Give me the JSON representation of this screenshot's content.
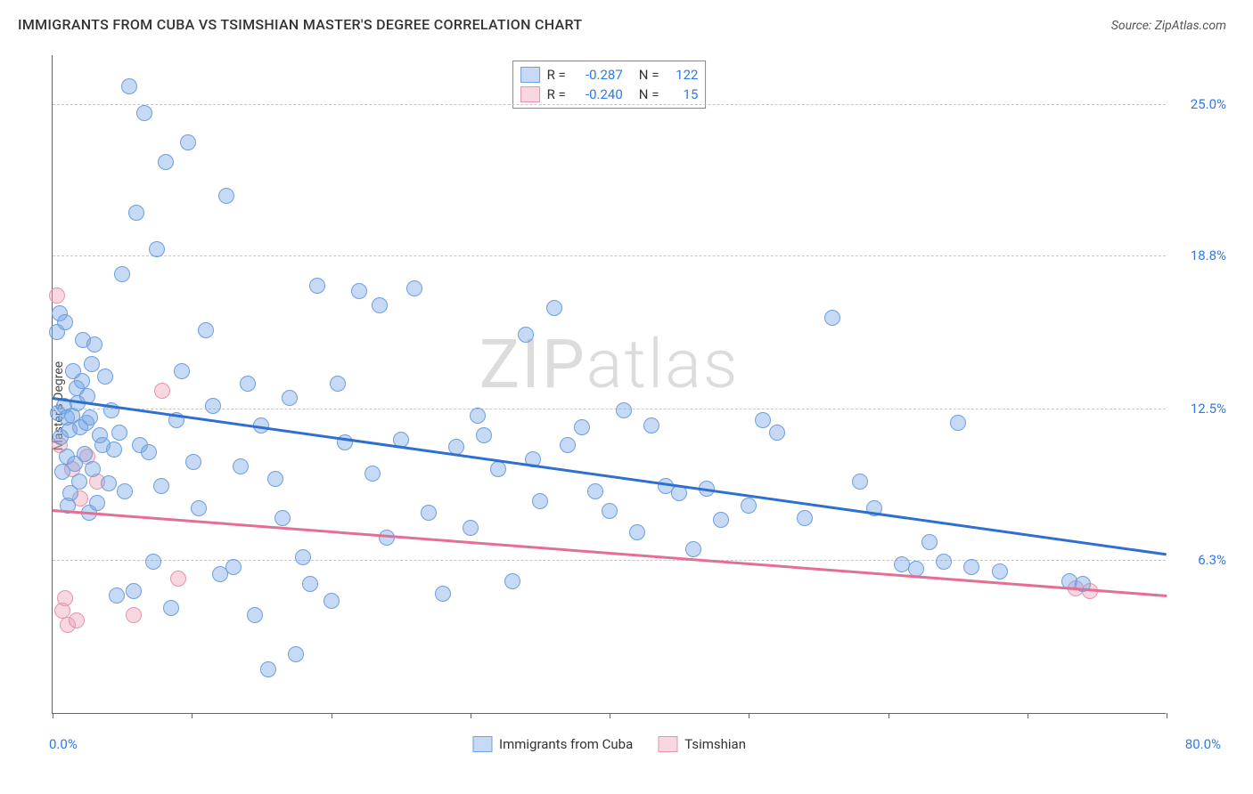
{
  "title": "IMMIGRANTS FROM CUBA VS TSIMSHIAN MASTER'S DEGREE CORRELATION CHART",
  "source_prefix": "Source: ",
  "source_name": "ZipAtlas.com",
  "ylabel": "Master's Degree",
  "watermark": {
    "bold": "ZIP",
    "light": "atlas"
  },
  "chart": {
    "type": "scatter",
    "xlim": [
      0,
      80
    ],
    "ylim": [
      0,
      27
    ],
    "x_axis_min_label": "0.0%",
    "x_axis_max_label": "80.0%",
    "x_ticks": [
      0,
      10,
      20,
      30,
      40,
      50,
      60,
      70,
      80
    ],
    "y_gridlines": [
      {
        "val": 6.3,
        "label": "6.3%"
      },
      {
        "val": 12.5,
        "label": "12.5%"
      },
      {
        "val": 18.8,
        "label": "18.8%"
      },
      {
        "val": 25.0,
        "label": "25.0%"
      }
    ],
    "axis_label_color": "#2f7ae5",
    "background_color": "#ffffff",
    "grid_color": "#c7c7c7",
    "marker_radius": 9,
    "series": [
      {
        "name": "Immigrants from Cuba",
        "fill": "rgba(120,165,230,0.42)",
        "stroke": "#6f9fdc",
        "line_color": "#2f6fd0",
        "R": "-0.287",
        "N": "122",
        "trend": {
          "x1": 0,
          "y1": 13.0,
          "x2": 80,
          "y2": 6.6
        },
        "points": [
          [
            0.3,
            15.6
          ],
          [
            0.4,
            12.3
          ],
          [
            0.5,
            16.4
          ],
          [
            0.6,
            11.3
          ],
          [
            0.7,
            9.9
          ],
          [
            0.8,
            12.6
          ],
          [
            0.9,
            16.0
          ],
          [
            1.0,
            12.1
          ],
          [
            1.0,
            10.5
          ],
          [
            1.1,
            8.5
          ],
          [
            1.2,
            11.6
          ],
          [
            1.3,
            9.0
          ],
          [
            1.4,
            12.2
          ],
          [
            1.5,
            14.0
          ],
          [
            1.6,
            10.2
          ],
          [
            1.7,
            13.3
          ],
          [
            1.8,
            12.7
          ],
          [
            1.9,
            9.5
          ],
          [
            2.0,
            11.7
          ],
          [
            2.1,
            13.6
          ],
          [
            2.2,
            15.3
          ],
          [
            2.3,
            10.6
          ],
          [
            2.4,
            11.9
          ],
          [
            2.5,
            13.0
          ],
          [
            2.6,
            8.2
          ],
          [
            2.7,
            12.1
          ],
          [
            2.8,
            14.3
          ],
          [
            2.9,
            10.0
          ],
          [
            3.0,
            15.1
          ],
          [
            3.2,
            8.6
          ],
          [
            3.4,
            11.4
          ],
          [
            3.6,
            11.0
          ],
          [
            3.8,
            13.8
          ],
          [
            4.0,
            9.4
          ],
          [
            4.2,
            12.4
          ],
          [
            4.4,
            10.8
          ],
          [
            4.6,
            4.8
          ],
          [
            4.8,
            11.5
          ],
          [
            5.0,
            18.0
          ],
          [
            5.2,
            9.1
          ],
          [
            5.5,
            25.7
          ],
          [
            5.8,
            5.0
          ],
          [
            6.0,
            20.5
          ],
          [
            6.3,
            11.0
          ],
          [
            6.6,
            24.6
          ],
          [
            6.9,
            10.7
          ],
          [
            7.2,
            6.2
          ],
          [
            7.5,
            19.0
          ],
          [
            7.8,
            9.3
          ],
          [
            8.1,
            22.6
          ],
          [
            8.5,
            4.3
          ],
          [
            8.9,
            12.0
          ],
          [
            9.3,
            14.0
          ],
          [
            9.7,
            23.4
          ],
          [
            10.1,
            10.3
          ],
          [
            10.5,
            8.4
          ],
          [
            11.0,
            15.7
          ],
          [
            11.5,
            12.6
          ],
          [
            12.0,
            5.7
          ],
          [
            12.5,
            21.2
          ],
          [
            13.0,
            6.0
          ],
          [
            13.5,
            10.1
          ],
          [
            14.0,
            13.5
          ],
          [
            14.5,
            4.0
          ],
          [
            15.0,
            11.8
          ],
          [
            15.5,
            1.8
          ],
          [
            16.0,
            9.6
          ],
          [
            16.5,
            8.0
          ],
          [
            17.0,
            12.9
          ],
          [
            17.5,
            2.4
          ],
          [
            18.0,
            6.4
          ],
          [
            19.0,
            17.5
          ],
          [
            20.0,
            4.6
          ],
          [
            20.5,
            13.5
          ],
          [
            21.0,
            11.1
          ],
          [
            22.0,
            17.3
          ],
          [
            23.0,
            9.8
          ],
          [
            23.5,
            16.7
          ],
          [
            24.0,
            7.2
          ],
          [
            25.0,
            11.2
          ],
          [
            26.0,
            17.4
          ],
          [
            27.0,
            8.2
          ],
          [
            28.0,
            4.9
          ],
          [
            29.0,
            10.9
          ],
          [
            30.0,
            7.6
          ],
          [
            31.0,
            11.4
          ],
          [
            32.0,
            10.0
          ],
          [
            33.0,
            5.4
          ],
          [
            34.0,
            15.5
          ],
          [
            35.0,
            8.7
          ],
          [
            36.0,
            16.6
          ],
          [
            37.0,
            11.0
          ],
          [
            38.0,
            11.7
          ],
          [
            39.0,
            9.1
          ],
          [
            40.0,
            8.3
          ],
          [
            41.0,
            12.4
          ],
          [
            42.0,
            7.4
          ],
          [
            43.0,
            11.8
          ],
          [
            44.0,
            9.3
          ],
          [
            45.0,
            9.0
          ],
          [
            46.0,
            6.7
          ],
          [
            47.0,
            9.2
          ],
          [
            48.0,
            7.9
          ],
          [
            50.0,
            8.5
          ],
          [
            52.0,
            11.5
          ],
          [
            54.0,
            8.0
          ],
          [
            56.0,
            16.2
          ],
          [
            58.0,
            9.5
          ],
          [
            59.0,
            8.4
          ],
          [
            61.0,
            6.1
          ],
          [
            62.0,
            5.9
          ],
          [
            63.0,
            7.0
          ],
          [
            64.0,
            6.2
          ],
          [
            65.0,
            11.9
          ],
          [
            66.0,
            6.0
          ],
          [
            68.0,
            5.8
          ],
          [
            73.0,
            5.4
          ],
          [
            74.0,
            5.3
          ],
          [
            18.5,
            5.3
          ],
          [
            30.5,
            12.2
          ],
          [
            34.5,
            10.4
          ],
          [
            51.0,
            12.0
          ]
        ]
      },
      {
        "name": "Tsimshian",
        "fill": "rgba(238,160,180,0.42)",
        "stroke": "#e396ac",
        "line_color": "#e46f94",
        "R": "-0.240",
        "N": "15",
        "trend": {
          "x1": 0,
          "y1": 8.4,
          "x2": 80,
          "y2": 4.9
        },
        "points": [
          [
            0.3,
            17.1
          ],
          [
            0.5,
            11.0
          ],
          [
            0.7,
            4.2
          ],
          [
            0.9,
            4.7
          ],
          [
            1.1,
            3.6
          ],
          [
            1.4,
            10.0
          ],
          [
            1.7,
            3.8
          ],
          [
            2.0,
            8.8
          ],
          [
            2.5,
            10.5
          ],
          [
            3.2,
            9.5
          ],
          [
            5.8,
            4.0
          ],
          [
            7.9,
            13.2
          ],
          [
            9.0,
            5.5
          ],
          [
            73.5,
            5.1
          ],
          [
            74.5,
            5.0
          ]
        ]
      }
    ]
  }
}
